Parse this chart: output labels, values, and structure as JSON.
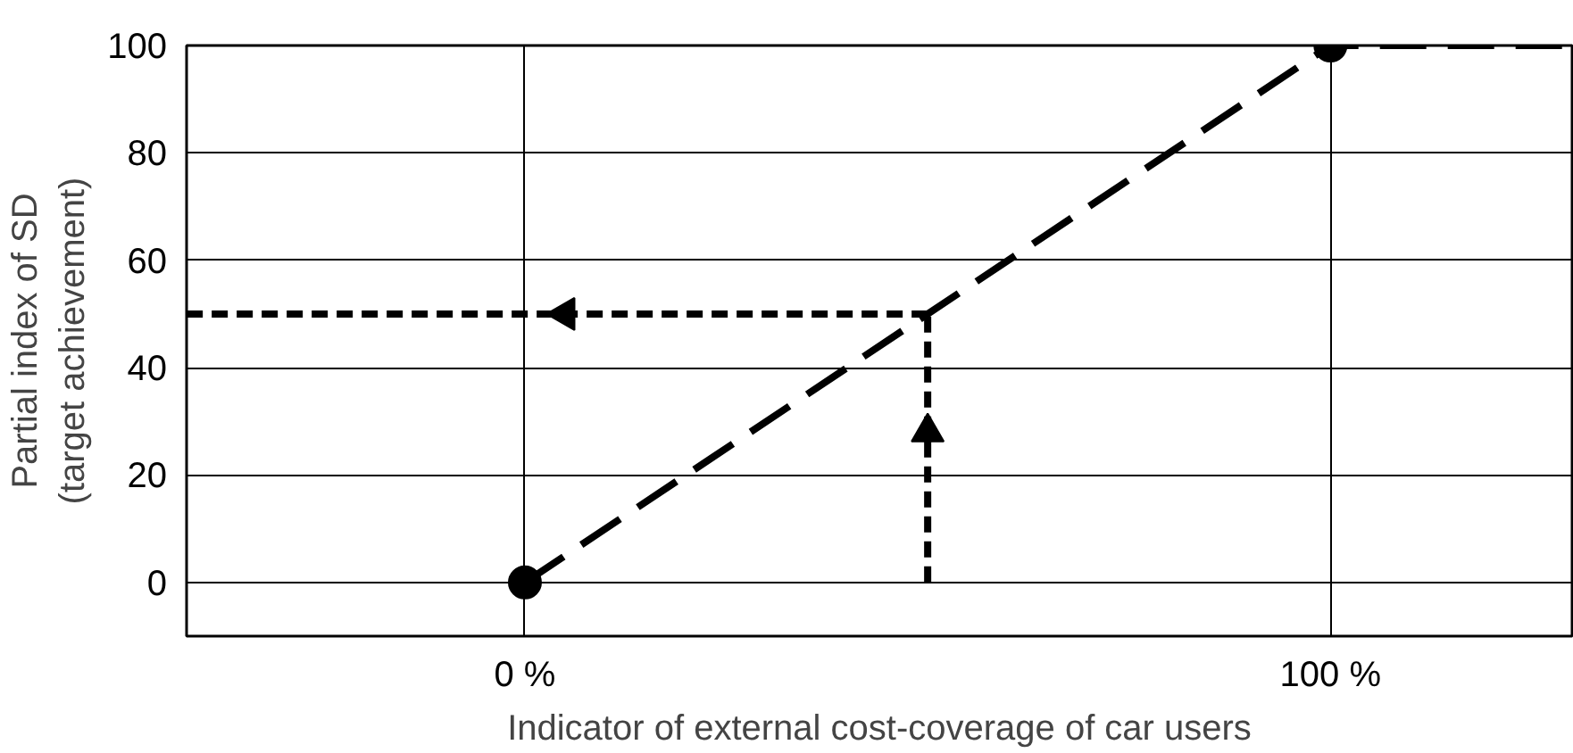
{
  "chart_data": {
    "type": "line",
    "xlabel": "Indicator of external cost-coverage of car users",
    "ylabel": "Partial index of SD\n(target achievement)",
    "xlim": [
      -42,
      130
    ],
    "ylim": [
      -10,
      100
    ],
    "xticks": [
      {
        "value": 0,
        "label": "0 %"
      },
      {
        "value": 100,
        "label": "100 %"
      }
    ],
    "yticks": [
      0,
      20,
      40,
      60,
      80,
      100
    ],
    "grid": true,
    "series": [
      {
        "color": "#000000",
        "x": [
          0,
          100,
          130
        ],
        "values": [
          0,
          100,
          100
        ],
        "line_style": "dashed",
        "marker": "none"
      },
      {
        "type": "scatter",
        "color": "#000000",
        "x": [
          0,
          100
        ],
        "values": [
          0,
          100
        ],
        "marker": "circle"
      },
      {
        "type": "line",
        "color": "#000000",
        "x": [
          50,
          50,
          50
        ],
        "values": [
          0,
          28,
          50
        ],
        "line_style": "dotted",
        "marker": "none"
      },
      {
        "type": "line",
        "color": "#000000",
        "x": [
          50,
          5,
          -42
        ],
        "values": [
          50,
          50,
          50
        ],
        "line_style": "dotted",
        "marker": "none"
      }
    ]
  }
}
